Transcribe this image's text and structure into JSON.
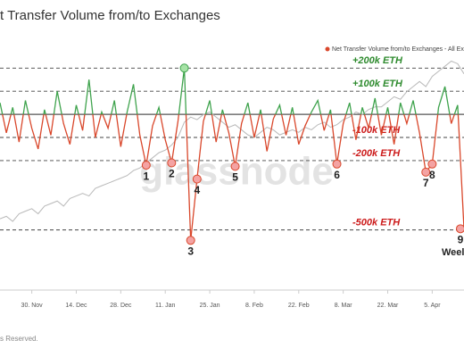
{
  "chart_data": {
    "type": "line",
    "title": "t Transfer Volume from/to Exchanges",
    "watermark": "glassnode",
    "footer": "s Reserved.",
    "corner_text": "Weel",
    "categories": [
      null,
      null,
      null,
      null,
      null,
      "30. Nov",
      null,
      null,
      null,
      null,
      null,
      null,
      "14. Dec",
      null,
      null,
      null,
      null,
      null,
      null,
      "28. Dec",
      null,
      null,
      null,
      null,
      null,
      null,
      "11. Jan",
      null,
      null,
      null,
      null,
      null,
      null,
      "25. Jan",
      null,
      null,
      null,
      null,
      null,
      null,
      "8. Feb",
      null,
      null,
      null,
      null,
      null,
      null,
      "22. Feb",
      null,
      null,
      null,
      null,
      null,
      null,
      "8. Mar",
      null,
      null,
      null,
      null,
      null,
      null,
      "22. Mar",
      null,
      null,
      null,
      null,
      null,
      null,
      "5. Apr",
      null,
      null,
      null,
      null,
      null
    ],
    "series": [
      {
        "name": "Net Transfer Volume from/to Exchanges - All Exchanges",
        "color": "#d9472b",
        "positive_color": "#3fa34d",
        "values": [
          50,
          -80,
          30,
          -120,
          60,
          -60,
          -150,
          20,
          -90,
          100,
          -40,
          -130,
          40,
          -70,
          150,
          -100,
          10,
          -60,
          60,
          -140,
          10,
          130,
          -90,
          -220,
          -50,
          30,
          -110,
          -210,
          -30,
          200,
          -545,
          -280,
          -30,
          60,
          -120,
          20,
          -80,
          -225,
          -40,
          50,
          -100,
          20,
          -160,
          -20,
          40,
          -90,
          30,
          -130,
          -50,
          10,
          60,
          -70,
          20,
          -215,
          -40,
          50,
          -110,
          30,
          -60,
          70,
          -90,
          30,
          -130,
          50,
          -40,
          60,
          -80,
          -250,
          -215,
          30,
          120,
          -40,
          40,
          -495
        ]
      },
      {
        "color": "#b9b9b9",
        "axis": "y2",
        "values": [
          18,
          19,
          17,
          20,
          21,
          22,
          20,
          23,
          24,
          25,
          23,
          26,
          27,
          28,
          27,
          30,
          31,
          32,
          33,
          34,
          35,
          37,
          38,
          40,
          42,
          44,
          45,
          47,
          50,
          56,
          58,
          57,
          59,
          60,
          58,
          56,
          54,
          55,
          53,
          51,
          50,
          52,
          54,
          53,
          51,
          52,
          53,
          52,
          54,
          53,
          55,
          56,
          54,
          55,
          57,
          58,
          60,
          59,
          61,
          62,
          62,
          64,
          66,
          65,
          68,
          70,
          72,
          70,
          74,
          76,
          78,
          80,
          79,
          75
        ]
      }
    ],
    "ylim": [
      -760,
      340
    ],
    "y2lim": [
      -10,
      90
    ],
    "reference_lines": [
      {
        "value": 200,
        "label": "+200k ETH",
        "color": "#2e8b2e"
      },
      {
        "value": 100,
        "label": "+100k ETH",
        "color": "#2e8b2e"
      },
      {
        "value": 0
      },
      {
        "value": -100,
        "label": "-100k ETH",
        "color": "#cc1a1a"
      },
      {
        "value": -200,
        "label": "-200k ETH",
        "color": "#cc1a1a"
      },
      {
        "value": -500,
        "label": "-500k ETH",
        "color": "#cc1a1a"
      }
    ],
    "annotations": [
      {
        "text": "1",
        "index": 23
      },
      {
        "text": "2",
        "index": 27
      },
      {
        "text": "3",
        "index": 30
      },
      {
        "text": "4",
        "index": 31
      },
      {
        "text": "5",
        "index": 37
      },
      {
        "text": "6",
        "index": 53
      },
      {
        "text": "7",
        "index": 67
      },
      {
        "text": "8",
        "index": 68
      },
      {
        "text": "9",
        "index": 73
      }
    ],
    "highlight": {
      "index": 29
    }
  }
}
